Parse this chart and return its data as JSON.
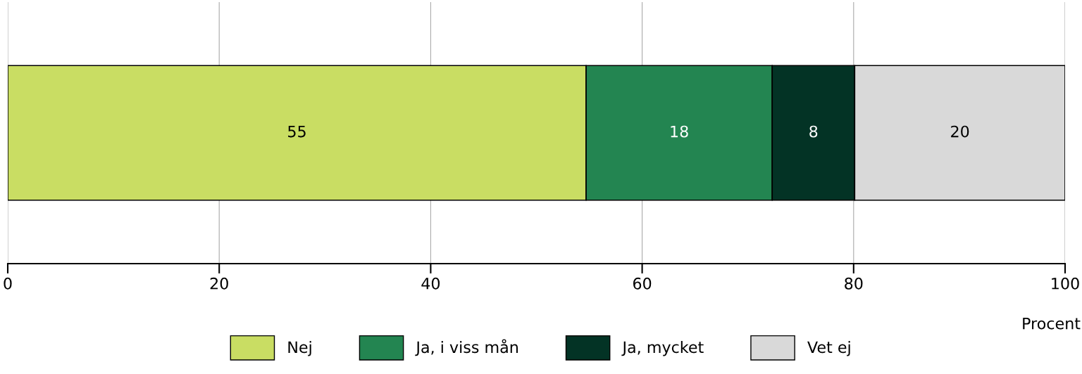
{
  "chart_data": {
    "type": "bar",
    "orientation": "horizontal",
    "stacked": true,
    "categories": [
      null
    ],
    "series": [
      {
        "name": "Nej",
        "color": "#c9dd63",
        "values": [
          54.7
        ],
        "value_labels": [
          "55"
        ]
      },
      {
        "name": "Ja, i viss mån",
        "color": "#238551",
        "values": [
          17.6
        ],
        "value_labels": [
          "18"
        ]
      },
      {
        "name": "Ja, mycket",
        "color": "#033325",
        "values": [
          7.8
        ],
        "value_labels": [
          "8"
        ]
      },
      {
        "name": "Vet ej",
        "color": "#d9d9d9",
        "values": [
          19.9
        ],
        "value_labels": [
          "20"
        ]
      }
    ],
    "xlim": [
      0,
      100
    ],
    "xticks": [
      0,
      20,
      40,
      60,
      80,
      100
    ],
    "xlabel": "Procent",
    "grid": "x",
    "legend": "bottom"
  }
}
